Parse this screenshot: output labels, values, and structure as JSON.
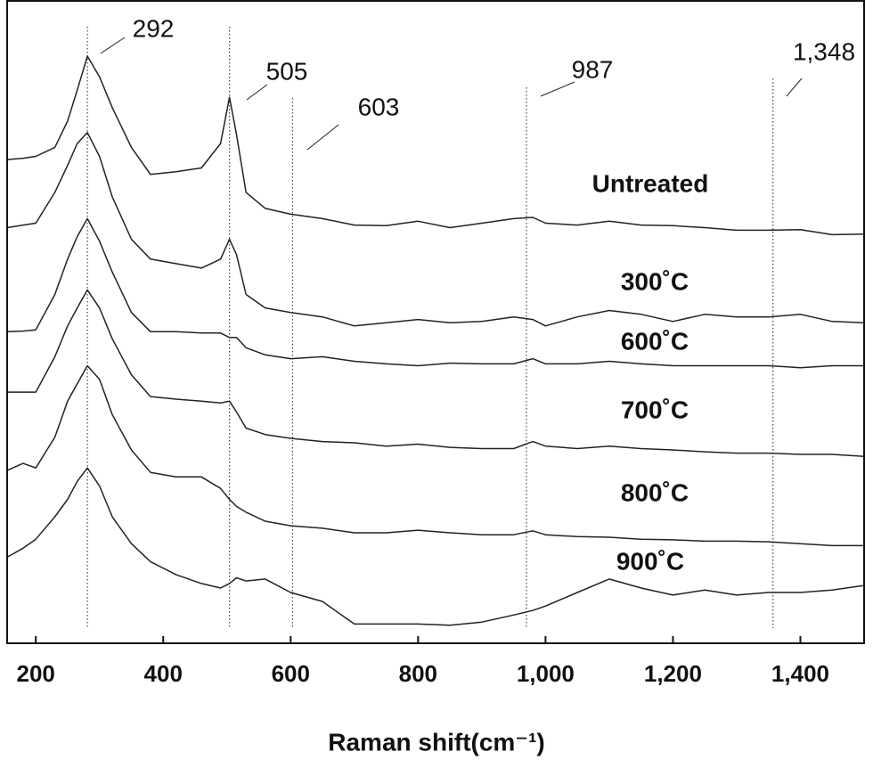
{
  "chart_data": {
    "type": "line",
    "xlabel": "Raman shift(cm⁻¹)",
    "xlim": [
      155,
      1500
    ],
    "ylim": [
      0,
      100
    ],
    "xticks": [
      200,
      400,
      600,
      800,
      {
        "value": 1000,
        "label": "1,000"
      },
      {
        "value": 1200,
        "label": "1,200"
      },
      {
        "value": 1400,
        "label": "1,400"
      }
    ],
    "annotations": [
      {
        "text": "292",
        "x": 281
      },
      {
        "text": "505",
        "x": 504
      },
      {
        "text": "603",
        "x": 603
      },
      {
        "text": "987",
        "x": 970
      },
      {
        "text": "1,348",
        "x": 1357
      }
    ],
    "x": [
      155,
      180,
      200,
      230,
      250,
      265,
      281,
      300,
      320,
      350,
      380,
      420,
      460,
      490,
      504,
      515,
      530,
      560,
      600,
      650,
      700,
      750,
      800,
      850,
      900,
      950,
      980,
      1000,
      1050,
      1100,
      1150,
      1200,
      1250,
      1300,
      1350,
      1400,
      1450,
      1500
    ],
    "series": [
      {
        "name": "Untreated",
        "color": "#222",
        "values": [
          75.3,
          75.5,
          75.8,
          77.2,
          81.3,
          86.1,
          91.4,
          88.2,
          83.4,
          77.2,
          73.0,
          73.4,
          74.0,
          77.8,
          85.0,
          79.2,
          70.2,
          67.7,
          66.8,
          66.1,
          65.1,
          65.0,
          65.7,
          64.7,
          65.4,
          66.1,
          66.3,
          65.4,
          65.1,
          65.7,
          65.1,
          65.0,
          64.7,
          64.3,
          64.3,
          64.4,
          63.6,
          63.7
        ]
      },
      {
        "name": "300˚C",
        "color": "#222",
        "values": [
          64.7,
          65.1,
          65.4,
          70.2,
          74.4,
          77.8,
          79.5,
          75.8,
          69.5,
          62.9,
          59.8,
          59.1,
          58.4,
          59.8,
          62.9,
          60.5,
          54.3,
          52.2,
          51.5,
          50.8,
          49.4,
          49.9,
          50.4,
          49.9,
          50.1,
          50.8,
          50.4,
          49.4,
          50.8,
          51.8,
          51.2,
          50.1,
          51.2,
          50.8,
          50.8,
          51.2,
          50.1,
          49.9
        ]
      },
      {
        "name": "600˚C",
        "color": "#222",
        "values": [
          48.5,
          48.6,
          48.8,
          54.3,
          59.8,
          63.3,
          66.1,
          62.6,
          57.8,
          51.5,
          48.5,
          48.5,
          48.3,
          48.3,
          47.6,
          47.6,
          46.0,
          44.9,
          44.3,
          44.6,
          43.9,
          43.5,
          43.2,
          43.6,
          43.5,
          43.5,
          44.3,
          43.5,
          43.5,
          43.9,
          43.5,
          43.2,
          43.2,
          43.2,
          43.2,
          42.9,
          43.2,
          43.2
        ]
      },
      {
        "name": "700˚C",
        "color": "#222",
        "values": [
          39.1,
          39.1,
          39.1,
          44.6,
          49.4,
          52.2,
          55.0,
          52.2,
          47.4,
          41.8,
          38.4,
          38.0,
          37.7,
          37.4,
          37.7,
          36.0,
          33.5,
          32.5,
          31.9,
          31.4,
          31.2,
          30.7,
          31.0,
          30.5,
          30.3,
          30.3,
          31.4,
          30.7,
          30.3,
          30.7,
          30.3,
          30.1,
          29.8,
          29.6,
          29.6,
          29.4,
          29.4,
          29.1
        ]
      },
      {
        "name": "800˚C",
        "color": "#222",
        "values": [
          26.9,
          28.0,
          27.3,
          32.1,
          37.7,
          40.4,
          43.2,
          41.1,
          35.6,
          30.1,
          26.6,
          25.9,
          25.9,
          24.1,
          22.4,
          21.3,
          20.4,
          19.0,
          18.3,
          17.9,
          17.2,
          17.2,
          17.6,
          17.2,
          16.9,
          16.9,
          17.5,
          16.9,
          16.6,
          16.5,
          16.2,
          16.1,
          15.9,
          15.9,
          15.8,
          15.5,
          15.2,
          15.2
        ]
      },
      {
        "name": "900˚C",
        "color": "#222",
        "values": [
          13.4,
          14.8,
          16.2,
          19.7,
          22.4,
          25.2,
          27.3,
          24.5,
          19.7,
          15.5,
          12.7,
          10.7,
          9.3,
          8.6,
          9.3,
          10.2,
          9.7,
          10.0,
          7.9,
          6.5,
          3.0,
          3.0,
          3.0,
          2.8,
          3.3,
          4.4,
          5.1,
          5.8,
          7.9,
          10.0,
          8.6,
          7.5,
          8.3,
          7.5,
          7.9,
          7.9,
          8.3,
          9.0
        ]
      }
    ]
  }
}
